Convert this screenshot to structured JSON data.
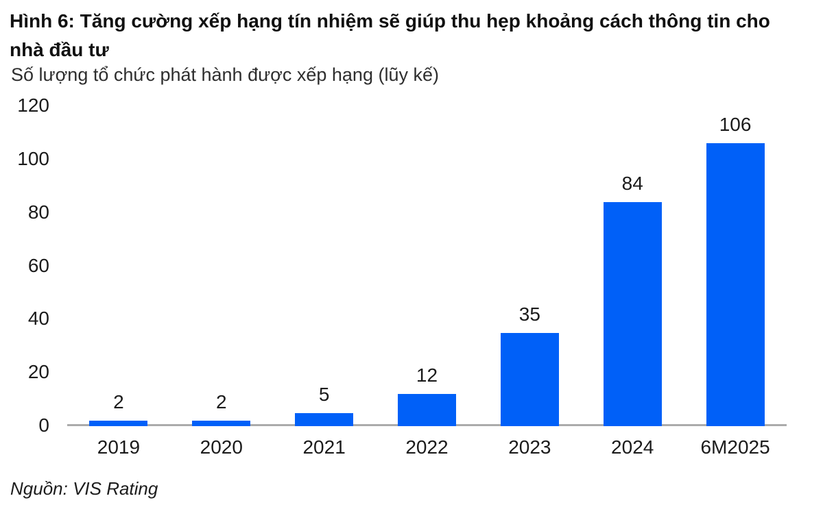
{
  "header": {
    "title_line1": "Hình 6: Tăng cường xếp hạng tín nhiệm sẽ giúp thu hẹp khoảng cách thông tin cho",
    "title_line2": "nhà đầu tư",
    "subtitle": "Số lượng tổ chức phát hành được xếp hạng (lũy kế)"
  },
  "footer": {
    "source": "Nguồn: VIS Rating"
  },
  "chart_data": {
    "type": "bar",
    "title": "Hình 6: Tăng cường xếp hạng tín nhiệm sẽ giúp thu hẹp khoảng cách thông tin cho nhà đầu tư",
    "subtitle": "Số lượng tổ chức phát hành được xếp hạng (lũy kế)",
    "categories": [
      "2019",
      "2020",
      "2021",
      "2022",
      "2023",
      "2024",
      "6M2025"
    ],
    "values": [
      2,
      2,
      5,
      12,
      35,
      84,
      106
    ],
    "value_labels": true,
    "yticks": [
      0,
      20,
      40,
      60,
      80,
      100,
      120
    ],
    "ylim": [
      0,
      120
    ],
    "xlabel": "",
    "ylabel": "",
    "grid": false,
    "legend_position": "none",
    "bar_color": "#0060F8",
    "axis_line_color": "#ABABAB",
    "source": "Nguồn: VIS Rating"
  }
}
